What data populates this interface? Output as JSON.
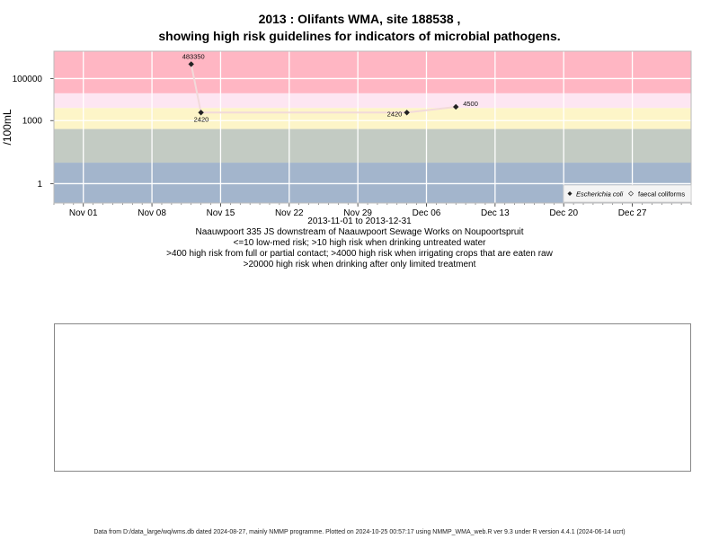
{
  "title_line1": "2013 : Olifants WMA, site 188538 ,",
  "title_line2": "showing high risk guidelines for indicators of microbial pathogens.",
  "subtitle_lines": [
    "2013-11-01 to 2013-12-31",
    "Naauwpoort 335 JS downstream of Naauwpoort Sewage Works on Noupoortspruit",
    "<=10 low-med risk; >10 high risk when drinking untreated water",
    ">400 high risk from full or partial contact; >4000 high risk when irrigating crops that are eaten raw",
    ">20000 high risk when drinking after only limited treatment"
  ],
  "footer": "Data from D:/data_large/wq/wms.db dated 2024-08-27, mainly NMMP programme. Plotted on 2024-10-25 00:57:17 using NMMP_WMA_web.R ver 9.3 under R version 4.4.1 (2024-06-14 ucrt)",
  "chart_data": {
    "type": "line",
    "title": "2013 : Olifants WMA, site 188538 ,\nshowing high risk guidelines for indicators of microbial pathogens.",
    "ylabel": "/100mL",
    "xlabel": "",
    "x_ticks": [
      "Nov 01",
      "Nov 08",
      "Nov 15",
      "Nov 22",
      "Nov 29",
      "Dec 06",
      "Dec 13",
      "Dec 20",
      "Dec 27"
    ],
    "x_tick_dates": [
      "2013-11-01",
      "2013-11-08",
      "2013-11-15",
      "2013-11-22",
      "2013-11-29",
      "2013-12-06",
      "2013-12-13",
      "2013-12-20",
      "2013-12-27"
    ],
    "xlim": [
      "2013-10-29",
      "2014-01-02"
    ],
    "y_scale": "log10",
    "y_ticks": [
      1,
      1000,
      100000
    ],
    "y_tick_labels": [
      "1",
      "1000",
      "100000"
    ],
    "ylim": [
      0.12,
      2000000
    ],
    "grid": true,
    "legend_position": "bottom-right",
    "risk_bands": [
      {
        "from": 0.12,
        "to": 10,
        "color": "#a3b5cc"
      },
      {
        "from": 10,
        "to": 400,
        "color": "#c3cbc3"
      },
      {
        "from": 400,
        "to": 4000,
        "color": "#fdf5c8"
      },
      {
        "from": 4000,
        "to": 20000,
        "color": "#fde6f2"
      },
      {
        "from": 20000,
        "to": 2000000,
        "color": "#ffb6c3"
      }
    ],
    "series": [
      {
        "name": "Escherichia coli",
        "marker": "filled-diamond",
        "color": "#222222",
        "line_color": "#f2dada",
        "points": [
          {
            "x": "2013-11-12",
            "y": 483350,
            "label": "483350"
          },
          {
            "x": "2013-11-13",
            "y": 2420,
            "label": "2420"
          },
          {
            "x": "2013-12-04",
            "y": 2420,
            "label": "2420"
          },
          {
            "x": "2013-12-09",
            "y": 4500,
            "label": "4500"
          }
        ]
      },
      {
        "name": "faecal coliforms",
        "marker": "open-diamond",
        "color": "#555555",
        "points": []
      }
    ]
  }
}
